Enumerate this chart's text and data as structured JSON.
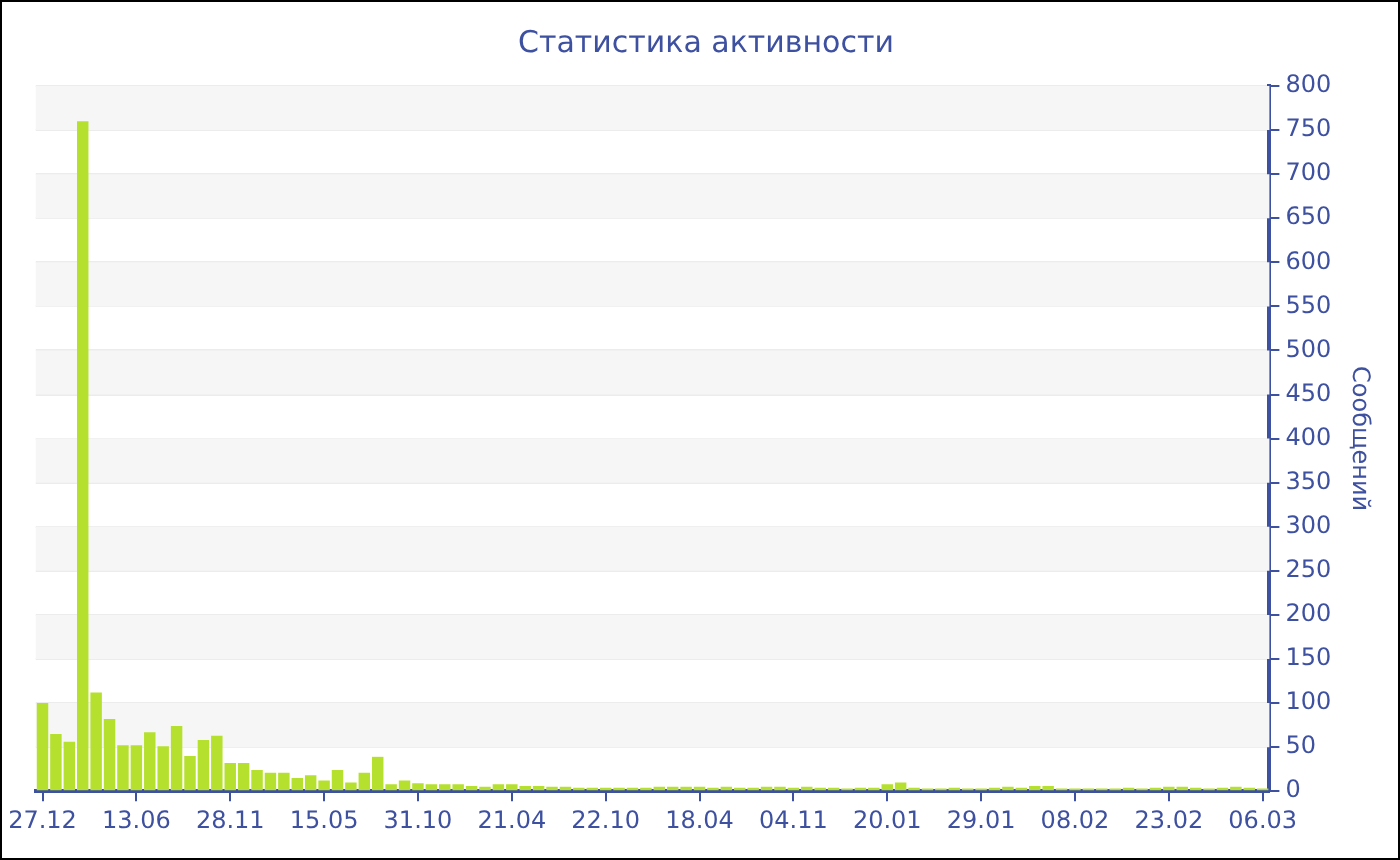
{
  "chart_data": {
    "type": "bar",
    "title": "Статистика активности",
    "ylabel": "Сообщений",
    "categories": [
      "27.12",
      null,
      null,
      null,
      null,
      null,
      null,
      "13.06",
      null,
      null,
      null,
      null,
      null,
      null,
      "28.11",
      null,
      null,
      null,
      null,
      null,
      null,
      "15.05",
      null,
      null,
      null,
      null,
      null,
      null,
      "31.10",
      null,
      null,
      null,
      null,
      null,
      null,
      "21.04",
      null,
      null,
      null,
      null,
      null,
      null,
      "22.10",
      null,
      null,
      null,
      null,
      null,
      null,
      "18.04",
      null,
      null,
      null,
      null,
      null,
      null,
      "04.11",
      null,
      null,
      null,
      null,
      null,
      null,
      "20.01",
      null,
      null,
      null,
      null,
      null,
      null,
      "29.01",
      null,
      null,
      null,
      null,
      null,
      null,
      "08.02",
      null,
      null,
      null,
      null,
      null,
      null,
      "23.02",
      null,
      null,
      null,
      null,
      null,
      null,
      "06.03"
    ],
    "values": [
      100,
      65,
      56,
      760,
      112,
      82,
      52,
      52,
      67,
      51,
      74,
      40,
      58,
      63,
      32,
      32,
      24,
      21,
      21,
      15,
      18,
      12,
      24,
      10,
      21,
      39,
      8,
      12,
      9,
      8,
      8,
      8,
      6,
      5,
      8,
      8,
      6,
      6,
      5,
      5,
      4,
      4,
      4,
      4,
      4,
      4,
      5,
      5,
      5,
      5,
      4,
      5,
      4,
      4,
      5,
      5,
      4,
      5,
      4,
      4,
      3,
      4,
      4,
      8,
      10,
      4,
      3,
      3,
      4,
      3,
      3,
      4,
      5,
      4,
      6,
      6,
      3,
      3,
      3,
      3,
      3,
      4,
      3,
      4,
      5,
      5,
      4,
      3,
      4,
      5,
      4,
      3
    ],
    "color": "#b5e02e",
    "ylim": [
      0,
      800
    ],
    "yticks": [
      0,
      50,
      100,
      150,
      200,
      250,
      300,
      350,
      400,
      450,
      500,
      550,
      600,
      650,
      700,
      750,
      800
    ],
    "grid": "y"
  }
}
